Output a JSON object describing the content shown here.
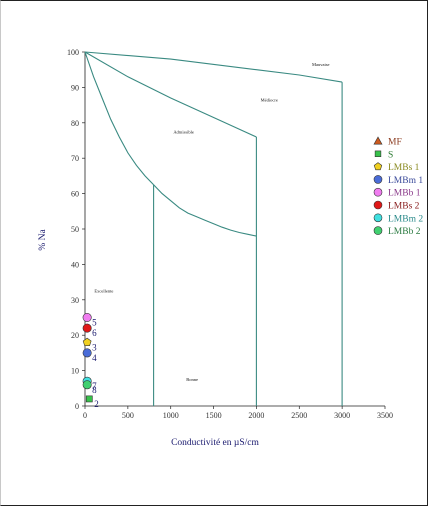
{
  "chart_data": {
    "type": "scatter",
    "title": "",
    "xlabel": "Conductivité en µS/cm",
    "ylabel": "% Na",
    "xlim": [
      0,
      3500
    ],
    "ylim": [
      0,
      100
    ],
    "x_ticks": [
      0,
      500,
      1000,
      1500,
      2000,
      2500,
      3000,
      3500
    ],
    "y_ticks": [
      0,
      10,
      20,
      30,
      40,
      50,
      60,
      70,
      80,
      90,
      100
    ],
    "grid": false,
    "legend_position": "right",
    "zone_color": "#3a8a82",
    "zones": [
      {
        "label": "Excellente",
        "x": 220,
        "y": 32
      },
      {
        "label": "Bonne",
        "x": 1250,
        "y": 7
      },
      {
        "label": "Admissible",
        "x": 1150,
        "y": 77
      },
      {
        "label": "Médiocre",
        "x": 2150,
        "y": 86
      },
      {
        "label": "Mauvaise",
        "x": 2750,
        "y": 96
      }
    ],
    "boundaries": [
      {
        "name": "curve-excellente-bonne",
        "points": [
          [
            0,
            100
          ],
          [
            100,
            93
          ],
          [
            200,
            87
          ],
          [
            300,
            81
          ],
          [
            400,
            76
          ],
          [
            500,
            71.5
          ],
          [
            600,
            68
          ],
          [
            700,
            65
          ],
          [
            800,
            62.5
          ]
        ]
      },
      {
        "name": "line-bonne-left",
        "points": [
          [
            800,
            62.5
          ],
          [
            800,
            0
          ]
        ]
      },
      {
        "name": "curve-bonne-admissible",
        "points": [
          [
            800,
            62.5
          ],
          [
            900,
            60
          ],
          [
            1000,
            58
          ],
          [
            1100,
            56
          ],
          [
            1200,
            54.5
          ],
          [
            1300,
            53.5
          ],
          [
            1400,
            52.5
          ],
          [
            1500,
            51.5
          ],
          [
            1600,
            50.5
          ],
          [
            1700,
            49.7
          ],
          [
            1800,
            49
          ],
          [
            1900,
            48.5
          ],
          [
            2000,
            48
          ]
        ]
      },
      {
        "name": "line-admissible-right",
        "points": [
          [
            2000,
            76
          ],
          [
            2000,
            0
          ]
        ]
      },
      {
        "name": "curve-admissible-mediocre",
        "points": [
          [
            0,
            100
          ],
          [
            500,
            93
          ],
          [
            1000,
            87
          ],
          [
            1500,
            81.5
          ],
          [
            2000,
            76
          ]
        ]
      },
      {
        "name": "line-mediocre-mauvaise",
        "points": [
          [
            0,
            100
          ],
          [
            1000,
            98
          ],
          [
            2000,
            95
          ],
          [
            2500,
            93.5
          ],
          [
            3000,
            91.5
          ]
        ]
      },
      {
        "name": "line-mauvaise-right",
        "points": [
          [
            3000,
            91.5
          ],
          [
            3000,
            0
          ]
        ]
      }
    ],
    "series": [
      {
        "name": "MF",
        "marker": "triangle",
        "color": "#cc5a1e",
        "label_color": "#8b3a1e",
        "points": []
      },
      {
        "name": "S",
        "marker": "square",
        "color": "#37c24a",
        "label_color": "#2a7a30",
        "points": [
          {
            "x": 50,
            "y": 2,
            "label": "2"
          }
        ]
      },
      {
        "name": "LMBs 1",
        "marker": "pentagon",
        "color": "#f0d020",
        "label_color": "#8a8a20",
        "points": [
          {
            "x": 25,
            "y": 18,
            "label": "3"
          }
        ]
      },
      {
        "name": "LMBm 1",
        "marker": "circle",
        "color": "#4a6cd8",
        "label_color": "#3a4a9a",
        "points": [
          {
            "x": 25,
            "y": 15,
            "label": "4"
          }
        ]
      },
      {
        "name": "LMBb 1",
        "marker": "circle",
        "color": "#f07cf0",
        "label_color": "#8a3a8a",
        "points": [
          {
            "x": 25,
            "y": 25,
            "label": "5"
          }
        ]
      },
      {
        "name": "LMBs 2",
        "marker": "circle",
        "color": "#e01818",
        "label_color": "#8a2020",
        "points": [
          {
            "x": 25,
            "y": 22,
            "label": "6"
          }
        ]
      },
      {
        "name": "LMBm 2",
        "marker": "circle",
        "color": "#40e0e0",
        "label_color": "#2a8a8a",
        "points": [
          {
            "x": 25,
            "y": 7,
            "label": "7"
          }
        ]
      },
      {
        "name": "LMBb 2",
        "marker": "circle",
        "color": "#40d070",
        "label_color": "#2a7a40",
        "points": [
          {
            "x": 25,
            "y": 6,
            "label": "8"
          }
        ]
      }
    ]
  }
}
